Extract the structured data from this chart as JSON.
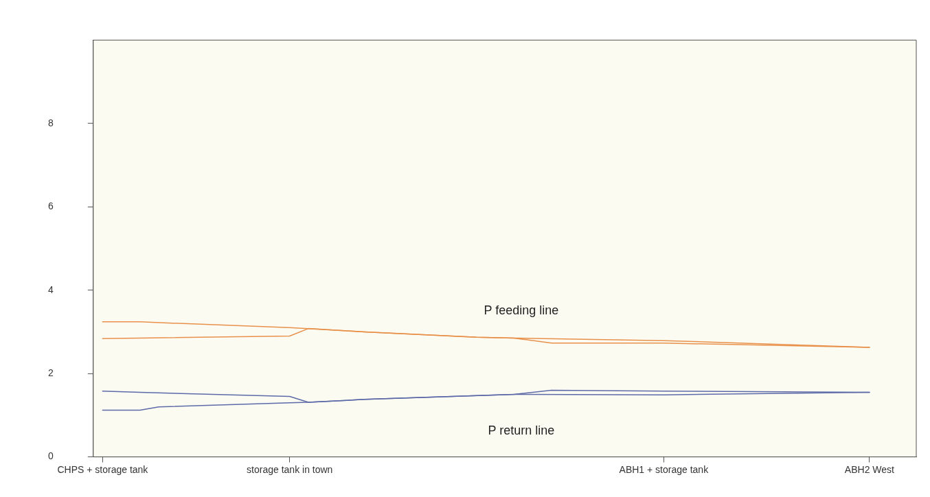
{
  "chart_data": {
    "type": "line",
    "categories": [
      "CHPS + storage tank",
      null,
      null,
      null,
      null,
      null,
      null,
      null,
      null,
      null,
      "storage tank in town",
      null,
      null,
      null,
      null,
      null,
      null,
      null,
      null,
      null,
      null,
      null,
      null,
      null,
      null,
      null,
      null,
      null,
      null,
      null,
      "ABH1 + storage tank",
      null,
      null,
      null,
      null,
      null,
      null,
      null,
      null,
      null,
      null,
      "ABH2 West",
      null,
      null
    ],
    "ylim": [
      0,
      10
    ],
    "yticks": [
      0,
      2,
      4,
      6,
      8
    ],
    "grid": false,
    "legend": false,
    "marker": "none",
    "line_style": "solid",
    "series": [
      {
        "color": "#e8904a",
        "values": [
          3.24,
          null,
          3.24,
          null,
          null,
          null,
          null,
          null,
          null,
          null,
          3.1,
          null,
          null,
          null,
          3.0,
          null,
          null,
          null,
          null,
          null,
          2.87,
          null,
          2.85,
          null,
          2.73,
          null,
          null,
          null,
          null,
          null,
          2.73,
          null,
          null,
          null,
          null,
          null,
          null,
          null,
          null,
          null,
          null,
          2.63,
          null,
          null
        ]
      },
      {
        "color": "#e8904a",
        "values": [
          2.84,
          null,
          null,
          null,
          null,
          null,
          null,
          null,
          null,
          null,
          2.9,
          3.08,
          null,
          null,
          3.0,
          null,
          null,
          null,
          null,
          null,
          2.87,
          null,
          2.85,
          null,
          null,
          null,
          null,
          null,
          null,
          null,
          2.79,
          null,
          null,
          null,
          null,
          null,
          null,
          null,
          null,
          null,
          null,
          2.63,
          null,
          null
        ]
      },
      {
        "color": "#5d6aa8",
        "values": [
          1.58,
          null,
          1.55,
          null,
          null,
          null,
          null,
          null,
          null,
          null,
          1.45,
          1.31,
          null,
          null,
          1.38,
          null,
          null,
          null,
          null,
          null,
          null,
          null,
          1.5,
          null,
          1.6,
          null,
          null,
          null,
          null,
          null,
          1.58,
          null,
          null,
          null,
          null,
          null,
          null,
          null,
          null,
          null,
          null,
          1.55,
          null,
          null
        ]
      },
      {
        "color": "#5d6aa8",
        "values": [
          1.12,
          null,
          1.12,
          1.2,
          null,
          null,
          null,
          null,
          null,
          null,
          1.3,
          1.31,
          null,
          null,
          1.38,
          null,
          null,
          null,
          null,
          null,
          null,
          null,
          1.5,
          null,
          null,
          null,
          null,
          null,
          null,
          null,
          1.49,
          null,
          null,
          null,
          null,
          null,
          null,
          null,
          null,
          null,
          null,
          1.55,
          null,
          null
        ]
      }
    ],
    "annotations": [
      "P feeding line",
      "P return line"
    ]
  }
}
